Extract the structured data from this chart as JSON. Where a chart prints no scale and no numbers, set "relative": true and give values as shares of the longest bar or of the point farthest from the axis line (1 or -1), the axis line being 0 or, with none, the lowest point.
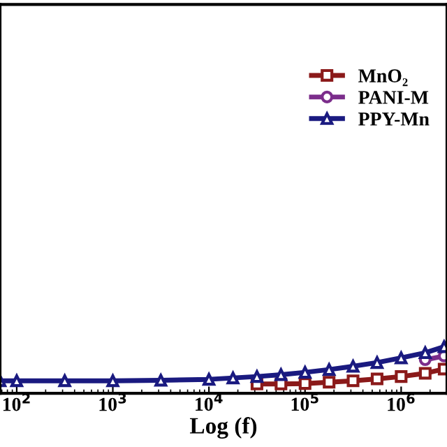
{
  "chart_data": {
    "type": "line",
    "relative": true,
    "log": "x",
    "xlabel": "Log (f)",
    "xlim": [
      67,
      3000000
    ],
    "xticks": [
      {
        "value": 100,
        "label": "10$^{2}$"
      },
      {
        "value": 1000,
        "label": "10$^{3}$"
      },
      {
        "value": 10000,
        "label": "10$^{4}$"
      },
      {
        "value": 100000,
        "label": "10$^{5}$"
      },
      {
        "value": 1000000,
        "label": "10$^{6}$"
      }
    ],
    "legend": "top right",
    "grid": false,
    "line_style": "solid",
    "series": [
      {
        "name": "MnO₂",
        "color": "#8b1a1a",
        "marker": "square",
        "x": [
          31600,
          56200,
          100000,
          178000,
          316000,
          562000,
          1000000,
          1780000,
          2800000
        ],
        "values": [
          0.2,
          0.2,
          0.21,
          0.24,
          0.27,
          0.31,
          0.36,
          0.43,
          0.52
        ]
      },
      {
        "name": "PANI-M",
        "color": "#7b2d8b",
        "marker": "circle",
        "x": [
          1780000,
          2800000
        ],
        "values": [
          0.72,
          0.8
        ]
      },
      {
        "name": "PPY-Mn",
        "color": "#1a1a80",
        "marker": "triangle",
        "x": [
          67,
          100,
          316,
          1000,
          3160,
          10000,
          17800,
          31600,
          56200,
          100000,
          178000,
          316000,
          562000,
          1000000,
          1780000,
          2800000
        ],
        "values": [
          0.27,
          0.27,
          0.27,
          0.27,
          0.28,
          0.3,
          0.33,
          0.36,
          0.4,
          0.45,
          0.51,
          0.58,
          0.66,
          0.76,
          0.87,
          1.0
        ]
      }
    ]
  }
}
